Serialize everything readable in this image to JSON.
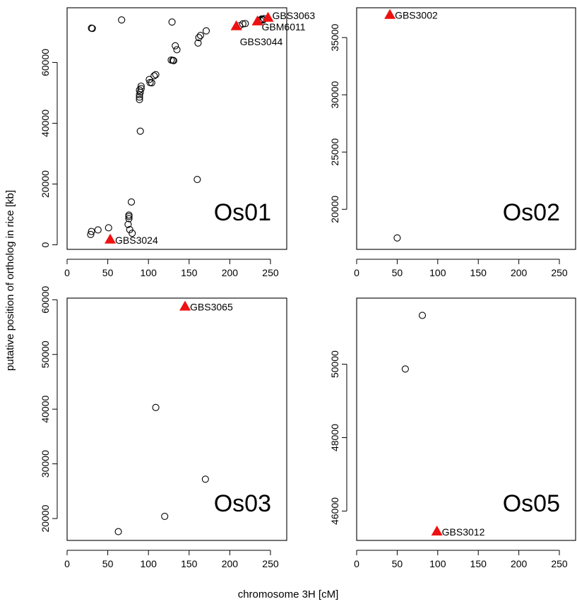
{
  "figure": {
    "ylabel": "putative position of ortholog in rice [kb]",
    "xlabel": "chromosome 3H [cM]"
  },
  "colors": {
    "highlight": "#ee1111",
    "points": "#000000"
  },
  "chart_data": [
    {
      "type": "scatter",
      "panel_label": "Os01",
      "xlim": [
        0,
        270
      ],
      "ylim": [
        -1500,
        78000
      ],
      "x_ticks": [
        0,
        50,
        100,
        150,
        200,
        250
      ],
      "y_ticks": [
        0,
        20000,
        40000,
        60000
      ],
      "markers": [
        [
          30,
          71300
        ],
        [
          31,
          71200
        ],
        [
          67,
          74000
        ],
        [
          129,
          73300
        ],
        [
          29,
          3400
        ],
        [
          30,
          4400
        ],
        [
          38,
          4900
        ],
        [
          51,
          5600
        ],
        [
          76,
          9800
        ],
        [
          76,
          9300
        ],
        [
          76,
          8600
        ],
        [
          75,
          6700
        ],
        [
          77,
          5000
        ],
        [
          80,
          3800
        ],
        [
          79,
          14100
        ],
        [
          90,
          37400
        ],
        [
          89,
          47800
        ],
        [
          89,
          48600
        ],
        [
          89,
          49400
        ],
        [
          90,
          50200
        ],
        [
          89,
          50900
        ],
        [
          91,
          51400
        ],
        [
          91,
          52200
        ],
        [
          102,
          53400
        ],
        [
          104,
          53300
        ],
        [
          101,
          54400
        ],
        [
          107,
          55600
        ],
        [
          109,
          56000
        ],
        [
          128,
          60800
        ],
        [
          130,
          60700
        ],
        [
          131,
          60600
        ],
        [
          133,
          65500
        ],
        [
          135,
          64200
        ],
        [
          160,
          21500
        ],
        [
          161,
          66400
        ],
        [
          162,
          68200
        ],
        [
          164,
          68900
        ],
        [
          171,
          70400
        ],
        [
          212,
          72100
        ],
        [
          216,
          72700
        ],
        [
          219,
          72800
        ],
        [
          238,
          73800
        ],
        [
          239,
          74300
        ],
        [
          240,
          74200
        ],
        [
          241,
          74000
        ],
        [
          242,
          74400
        ]
      ],
      "highlights": [
        {
          "x": 53,
          "y": 1800,
          "label": "GBS3024"
        },
        {
          "x": 208,
          "y": 72000,
          "label": "GBS3044"
        },
        {
          "x": 234,
          "y": 73600,
          "label": "GBM6011"
        },
        {
          "x": 247,
          "y": 74800,
          "label": "GBS3063"
        }
      ]
    },
    {
      "type": "scatter",
      "panel_label": "Os02",
      "xlim": [
        0,
        270
      ],
      "ylim": [
        16500,
        37600
      ],
      "x_ticks": [
        0,
        50,
        100,
        150,
        200,
        250
      ],
      "y_ticks": [
        20000,
        25000,
        30000,
        35000
      ],
      "markers": [
        [
          50,
          17500
        ]
      ],
      "highlights": [
        {
          "x": 41,
          "y": 37000,
          "label": "GBS3002"
        }
      ]
    },
    {
      "type": "scatter",
      "panel_label": "Os03",
      "xlim": [
        0,
        270
      ],
      "ylim": [
        16000,
        60300
      ],
      "x_ticks": [
        0,
        50,
        100,
        150,
        200,
        250
      ],
      "y_ticks": [
        20000,
        30000,
        40000,
        50000,
        60000
      ],
      "markers": [
        [
          63,
          17600
        ],
        [
          120,
          20400
        ],
        [
          109,
          40300
        ],
        [
          170,
          27200
        ]
      ],
      "highlights": [
        {
          "x": 145,
          "y": 58800,
          "label": "GBS3065"
        }
      ]
    },
    {
      "type": "scatter",
      "panel_label": "Os05",
      "xlim": [
        0,
        270
      ],
      "ylim": [
        45200,
        51800
      ],
      "x_ticks": [
        0,
        50,
        100,
        150,
        200,
        250
      ],
      "y_ticks": [
        46000,
        48000,
        50000
      ],
      "markers": [
        [
          60,
          49870
        ],
        [
          81,
          51330
        ]
      ],
      "highlights": [
        {
          "x": 99,
          "y": 45450,
          "label": "GBS3012"
        }
      ]
    }
  ]
}
